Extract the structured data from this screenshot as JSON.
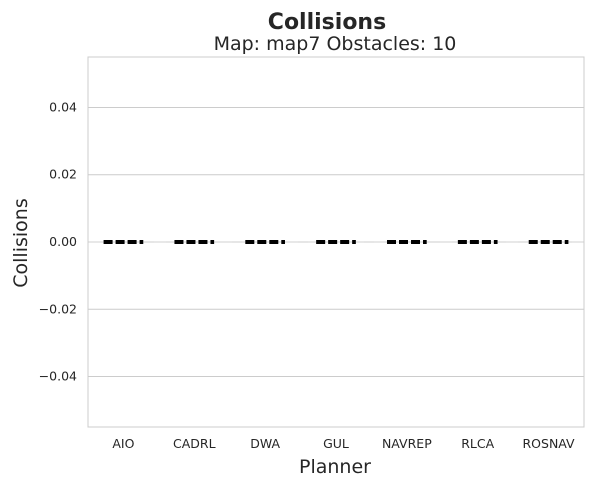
{
  "chart_data": {
    "type": "bar",
    "title": "Collisions",
    "subtitle": "Map: map7 Obstacles: 10",
    "xlabel": "Planner",
    "ylabel": "Collisions",
    "categories": [
      "AIO",
      "CADRL",
      "DWA",
      "GUL",
      "NAVREP",
      "RLCA",
      "ROSNAV"
    ],
    "values": [
      0,
      0,
      0,
      0,
      0,
      0,
      0
    ],
    "ylim": [
      -0.055,
      0.055
    ],
    "yticks": [
      -0.04,
      -0.02,
      0.0,
      0.02,
      0.04
    ],
    "ytick_labels": [
      "−0.04",
      "−0.02",
      "0.00",
      "0.02",
      "0.04"
    ],
    "grid": "horizontal",
    "reference_line": {
      "y": 0,
      "style": "dashed",
      "color": "#d9d9d9"
    },
    "mark_color": "#000000"
  }
}
